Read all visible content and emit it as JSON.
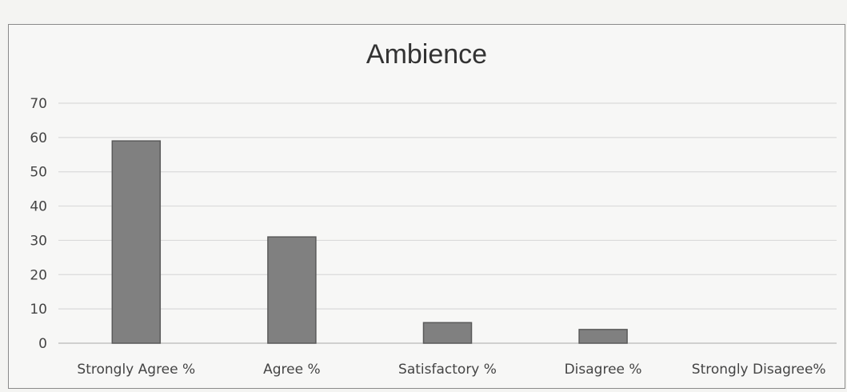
{
  "chart_data": {
    "type": "bar",
    "title": "Ambience",
    "xlabel": "",
    "ylabel": "",
    "categories": [
      "Strongly Agree %",
      "Agree %",
      "Satisfactory %",
      "Disagree %",
      "Strongly Disagree%"
    ],
    "values": [
      59,
      31,
      6,
      4,
      0
    ],
    "ylim": [
      0,
      70
    ],
    "yticks": [
      0,
      10,
      20,
      30,
      40,
      50,
      60,
      70
    ],
    "grid": true,
    "legend": "none",
    "bar_color": "#808080",
    "bar_border_color": "#5a5a5a"
  }
}
